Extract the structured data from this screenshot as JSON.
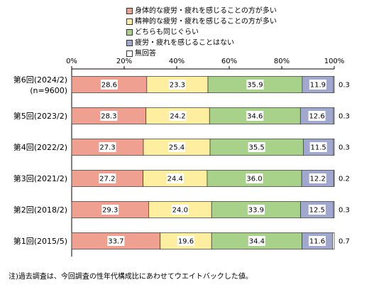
{
  "chart_data": {
    "type": "bar",
    "orientation": "horizontal",
    "stacked": true,
    "legend_position": "top",
    "xlim": [
      0,
      100
    ],
    "x_ticks": [
      "0%",
      "20%",
      "40%",
      "60%",
      "80%",
      "100%"
    ],
    "categories": [
      {
        "label": "第6回(2024/2)",
        "sublabel": "(n=9600)"
      },
      {
        "label": "第5回(2023/2)",
        "sublabel": ""
      },
      {
        "label": "第4回(2022/2)",
        "sublabel": ""
      },
      {
        "label": "第3回(2021/2)",
        "sublabel": ""
      },
      {
        "label": "第2回(2018/2)",
        "sublabel": ""
      },
      {
        "label": "第1回(2015/5)",
        "sublabel": ""
      }
    ],
    "series": [
      {
        "name": "身体的な疲労・疲れを感じることの方が多い",
        "color": "#f0a090",
        "values": [
          28.6,
          28.3,
          27.3,
          27.2,
          29.3,
          33.7
        ]
      },
      {
        "name": "精神的な疲労・疲れを感じることの方が多い",
        "color": "#fdeea0",
        "values": [
          23.3,
          24.2,
          25.4,
          24.4,
          24.0,
          19.6
        ]
      },
      {
        "name": "どちらも同じぐらい",
        "color": "#a8d28a",
        "values": [
          35.9,
          34.6,
          35.5,
          36.0,
          33.9,
          34.4
        ]
      },
      {
        "name": "疲労・疲れを感じることはない",
        "color": "#a0a8d0",
        "values": [
          11.9,
          12.6,
          11.5,
          12.2,
          12.5,
          11.6
        ]
      },
      {
        "name": "無回答",
        "color": "#ffffff",
        "values": [
          0.3,
          0.3,
          0.3,
          0.2,
          0.3,
          0.7
        ]
      }
    ],
    "data_labels": [
      [
        "28.6",
        "23.3",
        "35.9",
        "11.9",
        "0.3"
      ],
      [
        "28.3",
        "24.2",
        "34.6",
        "12.6",
        "0.3"
      ],
      [
        "27.3",
        "25.4",
        "35.5",
        "11.5",
        "0.3"
      ],
      [
        "27.2",
        "24.4",
        "36.0",
        "12.2",
        "0.2"
      ],
      [
        "29.3",
        "24.0",
        "33.9",
        "12.5",
        "0.3"
      ],
      [
        "33.7",
        "19.6",
        "34.4",
        "11.6",
        "0.7"
      ]
    ]
  },
  "footnote": "注)過去調査は、今回調査の性年代構成比にあわせてウエイトバックした値。"
}
